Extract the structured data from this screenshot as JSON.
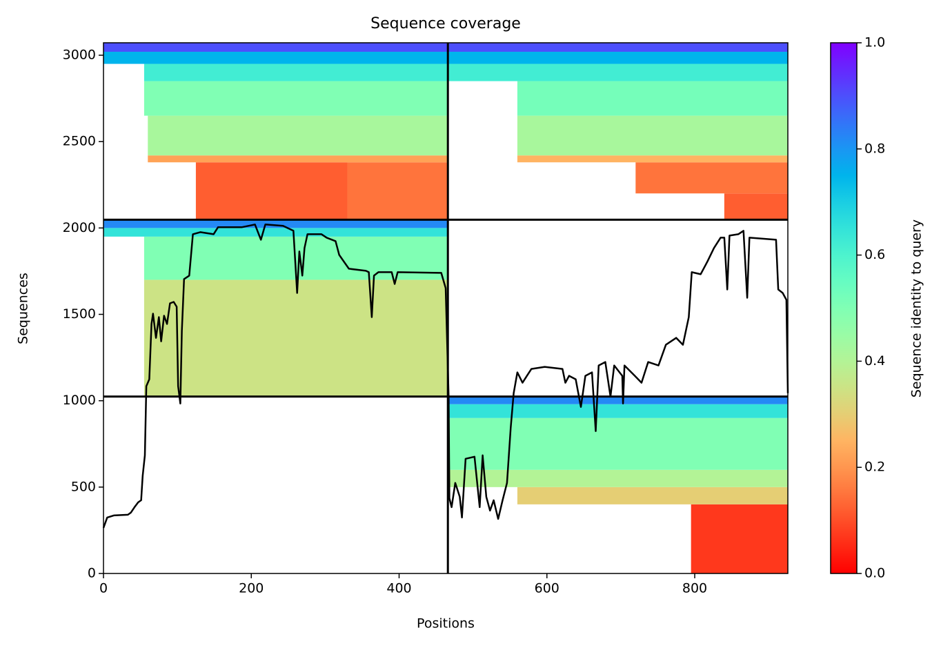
{
  "chart_data": {
    "type": "coverage",
    "title": "Sequence coverage",
    "x_label": "Positions",
    "y_label": "Sequences",
    "xlim": [
      0,
      926
    ],
    "ylim": [
      0,
      3072
    ],
    "xticks": [
      0,
      200,
      400,
      600,
      800
    ],
    "yticks": [
      0,
      500,
      1000,
      1500,
      2000,
      2500,
      3000
    ],
    "colormap": "rainbow_r",
    "colorbar": {
      "label": "Sequence identity to query",
      "clim": [
        0,
        1
      ],
      "ticks": [
        {
          "value": 0,
          "label": "0.0"
        },
        {
          "value": 0.2,
          "label": "0.2"
        },
        {
          "value": 0.4,
          "label": "0.4"
        },
        {
          "value": 0.6,
          "label": "0.6"
        },
        {
          "value": 0.8,
          "label": "0.8"
        },
        {
          "value": 1,
          "label": "1.0"
        }
      ]
    },
    "dividers": {
      "x": [
        466
      ],
      "y": [
        1024,
        2048
      ]
    },
    "bands": [
      {
        "x0": 125,
        "x1": 330,
        "y0": 2048,
        "y1": 2380,
        "identity": 0.12
      },
      {
        "x0": 330,
        "x1": 466,
        "y0": 2048,
        "y1": 2380,
        "identity": 0.15
      },
      {
        "x0": 60,
        "x1": 466,
        "y0": 2380,
        "y1": 2420,
        "identity": 0.22
      },
      {
        "x0": 60,
        "x1": 466,
        "y0": 2420,
        "y1": 2650,
        "identity": 0.42
      },
      {
        "x0": 55,
        "x1": 466,
        "y0": 2650,
        "y1": 2850,
        "identity": 0.5
      },
      {
        "x0": 55,
        "x1": 466,
        "y0": 2850,
        "y1": 2950,
        "identity": 0.62
      },
      {
        "x0": 0,
        "x1": 466,
        "y0": 2950,
        "y1": 3020,
        "identity": 0.75
      },
      {
        "x0": 0,
        "x1": 466,
        "y0": 3020,
        "y1": 3072,
        "identity": 0.9
      },
      {
        "x0": 840,
        "x1": 926,
        "y0": 2048,
        "y1": 2200,
        "identity": 0.12
      },
      {
        "x0": 720,
        "x1": 926,
        "y0": 2200,
        "y1": 2380,
        "identity": 0.15
      },
      {
        "x0": 560,
        "x1": 926,
        "y0": 2380,
        "y1": 2420,
        "identity": 0.25
      },
      {
        "x0": 560,
        "x1": 926,
        "y0": 2420,
        "y1": 2650,
        "identity": 0.42
      },
      {
        "x0": 560,
        "x1": 926,
        "y0": 2650,
        "y1": 2850,
        "identity": 0.52
      },
      {
        "x0": 466,
        "x1": 926,
        "y0": 2850,
        "y1": 2950,
        "identity": 0.62
      },
      {
        "x0": 466,
        "x1": 926,
        "y0": 2950,
        "y1": 3020,
        "identity": 0.75
      },
      {
        "x0": 466,
        "x1": 926,
        "y0": 3020,
        "y1": 3072,
        "identity": 0.9
      },
      {
        "x0": 55,
        "x1": 466,
        "y0": 1024,
        "y1": 1700,
        "identity": 0.35
      },
      {
        "x0": 55,
        "x1": 466,
        "y0": 1700,
        "y1": 1950,
        "identity": 0.5
      },
      {
        "x0": 0,
        "x1": 466,
        "y0": 1950,
        "y1": 2000,
        "identity": 0.65
      },
      {
        "x0": 0,
        "x1": 466,
        "y0": 2000,
        "y1": 2048,
        "identity": 0.82
      },
      {
        "x0": 795,
        "x1": 926,
        "y0": 0,
        "y1": 400,
        "identity": 0.07
      },
      {
        "x0": 560,
        "x1": 926,
        "y0": 400,
        "y1": 500,
        "identity": 0.3
      },
      {
        "x0": 466,
        "x1": 926,
        "y0": 500,
        "y1": 600,
        "identity": 0.4
      },
      {
        "x0": 466,
        "x1": 926,
        "y0": 600,
        "y1": 900,
        "identity": 0.5
      },
      {
        "x0": 466,
        "x1": 926,
        "y0": 900,
        "y1": 980,
        "identity": 0.65
      },
      {
        "x0": 466,
        "x1": 926,
        "y0": 980,
        "y1": 1024,
        "identity": 0.82
      }
    ],
    "coverage": {
      "color": "#000000",
      "x": [
        0,
        5,
        14,
        33,
        37,
        42,
        47,
        51,
        53,
        56,
        58,
        62,
        65,
        67,
        71,
        75,
        78,
        82,
        86,
        90,
        95,
        99,
        101,
        104,
        106,
        109,
        116,
        121,
        131,
        149,
        155,
        187,
        205,
        213,
        219,
        243,
        257,
        262,
        265,
        269,
        272,
        276,
        286,
        295,
        302,
        314,
        319,
        332,
        355,
        359,
        363,
        366,
        372,
        390,
        394,
        398,
        457,
        463,
        467,
        468,
        471,
        476,
        482,
        485,
        490,
        502,
        509,
        513,
        518,
        523,
        528,
        534,
        540,
        546,
        551,
        555,
        560,
        567,
        573,
        579,
        597,
        621,
        625,
        630,
        639,
        646,
        652,
        661,
        666,
        670,
        679,
        686,
        691,
        702,
        703,
        705,
        719,
        728,
        737,
        751,
        761,
        775,
        784,
        792,
        796,
        808,
        817,
        826,
        835,
        840,
        844,
        847,
        859,
        866,
        871,
        874,
        910,
        913,
        919,
        924,
        926
      ],
      "values": [
        264,
        324,
        336,
        340,
        352,
        384,
        412,
        424,
        564,
        684,
        1084,
        1124,
        1444,
        1504,
        1364,
        1484,
        1344,
        1492,
        1444,
        1564,
        1572,
        1544,
        1084,
        984,
        1404,
        1704,
        1724,
        1964,
        1976,
        1964,
        2004,
        2004,
        2020,
        1932,
        2020,
        2012,
        1984,
        1624,
        1864,
        1724,
        1884,
        1964,
        1964,
        1964,
        1944,
        1924,
        1844,
        1764,
        1752,
        1744,
        1484,
        1724,
        1744,
        1744,
        1676,
        1744,
        1740,
        1652,
        1024,
        436,
        384,
        524,
        444,
        324,
        664,
        676,
        384,
        684,
        444,
        364,
        424,
        316,
        424,
        524,
        844,
        1044,
        1164,
        1104,
        1144,
        1184,
        1196,
        1184,
        1104,
        1144,
        1124,
        964,
        1144,
        1164,
        824,
        1204,
        1224,
        1024,
        1204,
        1144,
        984,
        1204,
        1144,
        1104,
        1224,
        1204,
        1324,
        1364,
        1324,
        1484,
        1744,
        1732,
        1804,
        1884,
        1944,
        1944,
        1644,
        1956,
        1964,
        1984,
        1596,
        1944,
        1932,
        1644,
        1624,
        1584,
        1044
      ]
    }
  }
}
